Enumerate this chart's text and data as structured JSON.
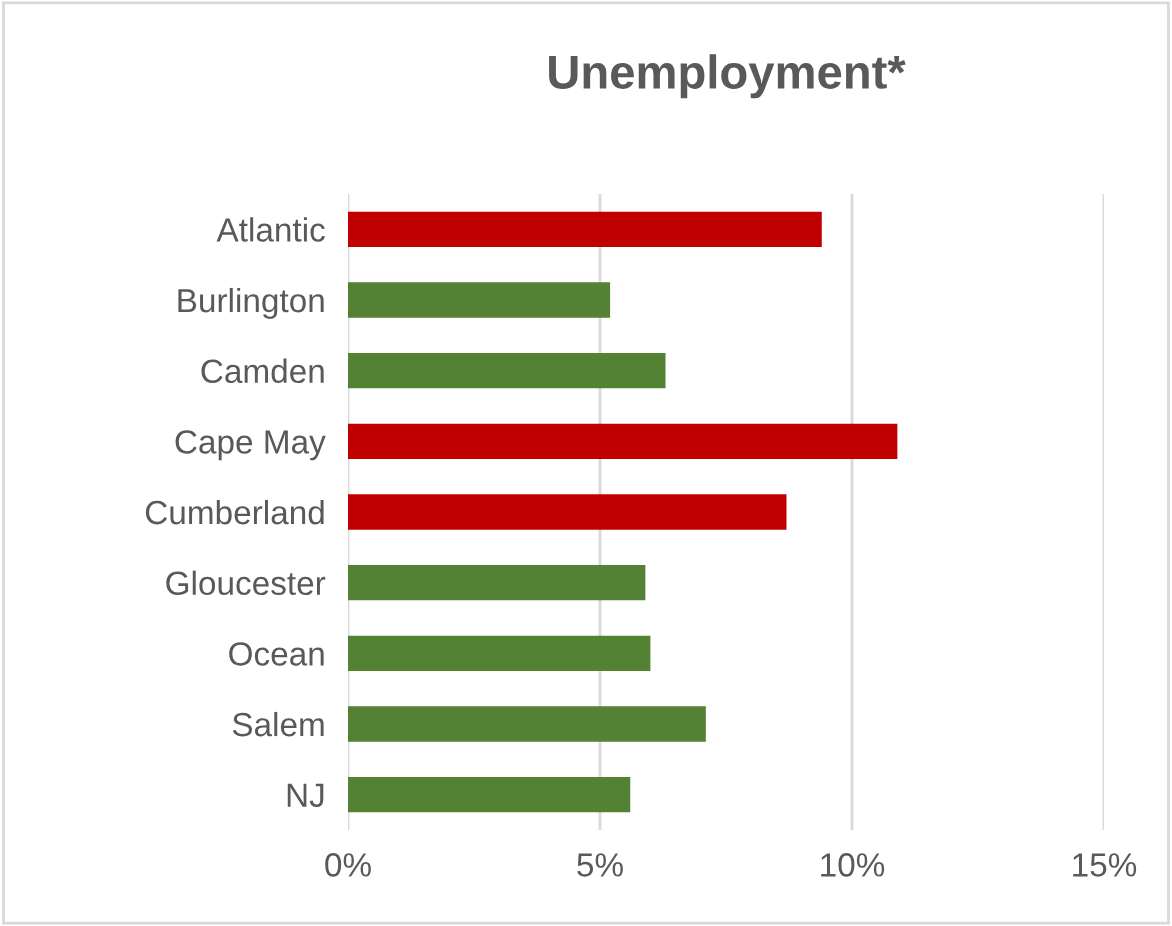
{
  "chart_data": {
    "type": "bar",
    "orientation": "horizontal",
    "title": "Unemployment*",
    "categories": [
      "Atlantic",
      "Burlington",
      "Camden",
      "Cape May",
      "Cumberland",
      "Gloucester",
      "Ocean",
      "Salem",
      "NJ"
    ],
    "values": [
      9.4,
      5.2,
      6.3,
      10.9,
      8.7,
      5.9,
      6.0,
      7.1,
      5.6
    ],
    "colors": [
      "#c00000",
      "#548235",
      "#548235",
      "#c00000",
      "#c00000",
      "#548235",
      "#548235",
      "#548235",
      "#548235"
    ],
    "xlim": [
      0,
      15
    ],
    "xticks": [
      {
        "value": 0,
        "label": "0%"
      },
      {
        "value": 5,
        "label": "5%"
      },
      {
        "value": 10,
        "label": "10%"
      },
      {
        "value": 15,
        "label": "15%"
      }
    ],
    "grid": "x"
  }
}
